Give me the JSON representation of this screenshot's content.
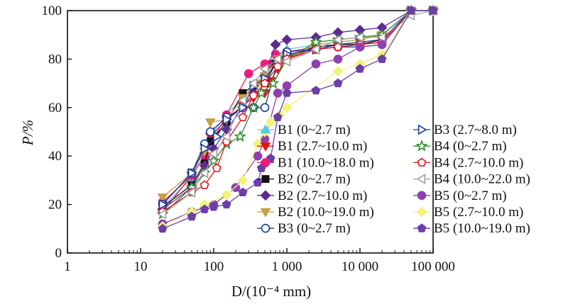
{
  "chart_data": {
    "type": "line",
    "x_scale": "log",
    "xlim": [
      1,
      100000
    ],
    "ylim": [
      0,
      100
    ],
    "xlabel": "D/(10⁻⁴ mm)",
    "ylabel": "P/%",
    "x_tick_labels": [
      "1",
      "10",
      "100",
      "1 000",
      "10 000",
      "100 000"
    ],
    "x_ticks": [
      1,
      10,
      100,
      1000,
      10000,
      100000
    ],
    "y_ticks": [
      0,
      20,
      40,
      60,
      80,
      100
    ],
    "y_tick_labels": [
      "0",
      "20",
      "40",
      "60",
      "80",
      "100"
    ],
    "grid": false,
    "legend_position": "center-right, inside",
    "series": [
      {
        "name": "B1 (0~2.7 m)",
        "color": "#5BC8E8",
        "marker": "triangle-up",
        "filled": true,
        "x": [
          20,
          50,
          75,
          100,
          150,
          250,
          350,
          500,
          750,
          1000,
          2500,
          5000,
          10000,
          20000,
          50000,
          100000
        ],
        "y": [
          19,
          31,
          44,
          50,
          57,
          64,
          69,
          74,
          80,
          84,
          86,
          87,
          88,
          90,
          100,
          100
        ]
      },
      {
        "name": "B1 (2.7~10.0 m)",
        "color": "#E8141C",
        "marker": "triangle-down",
        "filled": true,
        "x": [
          20,
          50,
          75,
          90,
          150,
          250,
          350,
          500,
          600,
          750,
          1000,
          2500,
          5000,
          10000,
          20000,
          50000,
          100000
        ],
        "y": [
          17,
          32,
          40,
          48,
          55,
          61,
          64,
          66,
          71,
          76,
          80,
          85,
          86,
          87,
          88,
          100,
          100
        ]
      },
      {
        "name": "B1 (10.0~18.0 m)",
        "color": "#EC1C7A",
        "marker": "circle",
        "filled": true,
        "x": [
          20,
          50,
          75,
          150,
          300,
          500,
          600,
          700,
          1000,
          2500,
          5000,
          10000,
          20000,
          50000,
          100000
        ],
        "y": [
          21,
          32,
          40,
          57,
          74,
          78,
          78,
          82,
          83,
          85,
          86,
          86,
          87,
          100,
          100
        ]
      },
      {
        "name": "B2 (0~2.7 m)",
        "color": "#111111",
        "marker": "square",
        "filled": true,
        "x": [
          20,
          50,
          75,
          90,
          150,
          250,
          350,
          500,
          700,
          1000,
          2500,
          5000,
          10000,
          20000,
          50000,
          100000
        ],
        "y": [
          19,
          28,
          37,
          46,
          54,
          66,
          69,
          70,
          78,
          81,
          85,
          86,
          86,
          88,
          100,
          100
        ]
      },
      {
        "name": "B2 (2.7~10.0 m)",
        "color": "#5B2C91",
        "marker": "diamond",
        "filled": true,
        "x": [
          20,
          50,
          75,
          100,
          150,
          250,
          350,
          500,
          700,
          1000,
          2500,
          5000,
          10000,
          20000,
          50000,
          100000
        ],
        "y": [
          18,
          27,
          36,
          43,
          51,
          60,
          66,
          73,
          86,
          88,
          89,
          91,
          92,
          93,
          100,
          100
        ]
      },
      {
        "name": "B2 (10.0~19.0 m)",
        "color": "#C8A040",
        "marker": "triangle-down",
        "filled": true,
        "x": [
          20,
          50,
          75,
          90,
          150,
          250,
          400,
          500,
          750,
          1000,
          2500,
          5000,
          10000,
          20000,
          50000,
          100000
        ],
        "y": [
          23,
          33,
          42,
          54,
          55,
          64,
          70,
          73,
          80,
          81,
          86,
          87,
          88,
          90,
          100,
          100
        ]
      },
      {
        "name": "B3 (0~2.7 m)",
        "color": "#1A3A9C",
        "marker": "circle",
        "filled": false,
        "x": [
          20,
          50,
          75,
          90,
          150,
          250,
          350,
          500,
          750,
          1000,
          2500,
          5000,
          10000,
          20000,
          50000,
          100000
        ],
        "y": [
          20,
          33,
          45,
          50,
          56,
          60,
          60,
          60,
          79,
          83,
          84,
          85,
          85,
          86,
          100,
          100
        ]
      },
      {
        "name": "B3 (2.7~8.0 m)",
        "color": "#1A3A9C",
        "marker": "triangle-right",
        "filled": false,
        "x": [
          20,
          50,
          75,
          110,
          150,
          250,
          350,
          500,
          750,
          1000,
          2500,
          5000,
          10000,
          20000,
          50000,
          100000
        ],
        "y": [
          20,
          33,
          43,
          48,
          55,
          60,
          69,
          72,
          79,
          82,
          84,
          86,
          87,
          88,
          100,
          100
        ]
      },
      {
        "name": "B4 (0~2.7 m)",
        "color": "#2E8B2E",
        "marker": "star",
        "filled": false,
        "x": [
          20,
          50,
          75,
          100,
          150,
          230,
          350,
          450,
          650,
          1000,
          2500,
          5000,
          10000,
          20000,
          50000,
          100000
        ],
        "y": [
          16,
          27,
          33,
          38,
          45,
          48,
          60,
          66,
          70,
          80,
          87,
          88,
          89,
          90,
          100,
          100
        ]
      },
      {
        "name": "B4 (2.7~10.0 m)",
        "color": "#E8141C",
        "marker": "pentagon",
        "filled": false,
        "x": [
          20,
          50,
          75,
          110,
          150,
          250,
          350,
          500,
          750,
          1000,
          2500,
          5000,
          10000,
          20000,
          50000,
          100000
        ],
        "y": [
          17,
          25,
          28,
          35,
          46,
          56,
          65,
          70,
          77,
          80,
          84,
          85,
          86,
          87,
          100,
          100
        ]
      },
      {
        "name": "B4 (10.0~22.0 m)",
        "color": "#A0A0A0",
        "marker": "triangle-left",
        "filled": false,
        "x": [
          20,
          50,
          75,
          100,
          150,
          250,
          350,
          500,
          750,
          1000,
          2500,
          5000,
          10000,
          20000,
          50000,
          100000
        ],
        "y": [
          16,
          25,
          33,
          41,
          48,
          63,
          70,
          76,
          80,
          79,
          84,
          88,
          89,
          89,
          98,
          100
        ]
      },
      {
        "name": "B5 (0~2.7 m)",
        "color": "#8E3FAF",
        "marker": "circle",
        "filled": true,
        "x": [
          20,
          50,
          100,
          200,
          400,
          500,
          750,
          1000,
          2500,
          5000,
          10000,
          20000,
          50000,
          100000
        ],
        "y": [
          12,
          17,
          20,
          27,
          40,
          47,
          66,
          69,
          78,
          80,
          85,
          86,
          100,
          100
        ]
      },
      {
        "name": "B5 (2.7~10.0 m)",
        "color": "#F2F27A",
        "marker": "diamond",
        "filled": true,
        "x": [
          20,
          50,
          75,
          150,
          250,
          400,
          500,
          600,
          800,
          1000,
          5000,
          10000,
          20000,
          50000,
          100000
        ],
        "y": [
          11,
          17,
          20,
          24,
          30,
          45,
          50,
          54,
          57,
          60,
          75,
          78,
          82,
          100,
          100
        ]
      },
      {
        "name": "B5 (10.0~19.0 m)",
        "color": "#6A3FA8",
        "marker": "pentagon",
        "filled": true,
        "x": [
          20,
          50,
          75,
          100,
          150,
          250,
          400,
          450,
          500,
          600,
          750,
          1000,
          2500,
          5000,
          10000,
          20000,
          50000,
          100000
        ],
        "y": [
          10,
          15,
          18,
          19,
          20,
          25,
          29,
          35,
          37,
          39,
          56,
          66,
          67,
          70,
          76,
          80,
          100,
          100
        ]
      }
    ]
  }
}
